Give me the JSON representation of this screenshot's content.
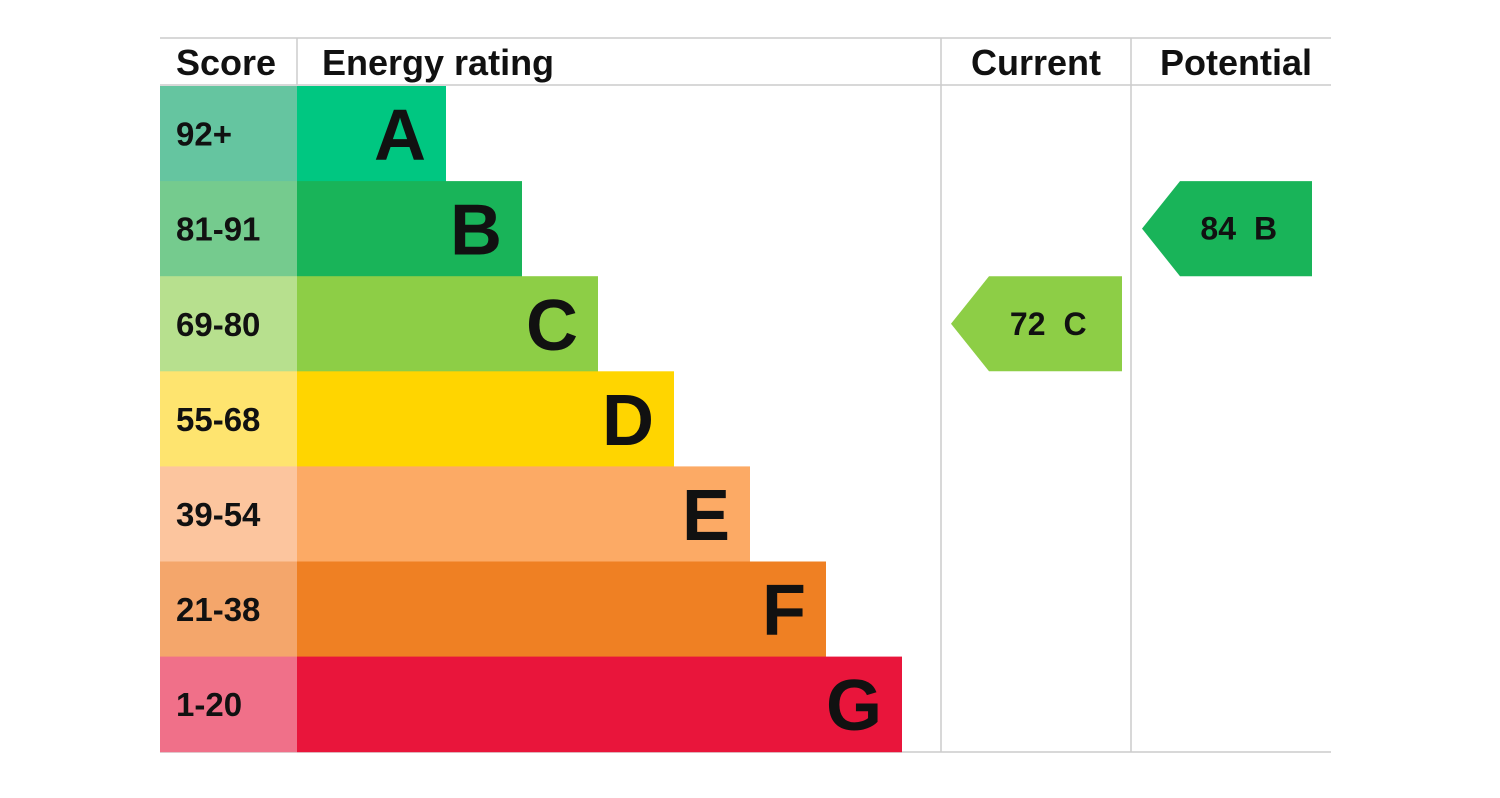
{
  "chart_data": {
    "type": "bar",
    "headers": {
      "score": "Score",
      "rating": "Energy rating",
      "current": "Current",
      "potential": "Potential"
    },
    "bands": [
      {
        "score": "92+",
        "letter": "A",
        "color": "#00c781",
        "score_bg": "#65c5a0"
      },
      {
        "score": "81-91",
        "letter": "B",
        "color": "#19b459",
        "score_bg": "#75cb8e"
      },
      {
        "score": "69-80",
        "letter": "C",
        "color": "#8dce46",
        "score_bg": "#b7e08e"
      },
      {
        "score": "55-68",
        "letter": "D",
        "color": "#ffd500",
        "score_bg": "#fee46f"
      },
      {
        "score": "39-54",
        "letter": "E",
        "color": "#fcaa65",
        "score_bg": "#fcc59e"
      },
      {
        "score": "21-38",
        "letter": "F",
        "color": "#ef8023",
        "score_bg": "#f4a66b"
      },
      {
        "score": "1-20",
        "letter": "G",
        "color": "#e9153b",
        "score_bg": "#f07089"
      }
    ],
    "current": {
      "value": 72,
      "letter": "C",
      "color": "#8dce46"
    },
    "potential": {
      "value": 84,
      "letter": "B",
      "color": "#19b459"
    }
  }
}
